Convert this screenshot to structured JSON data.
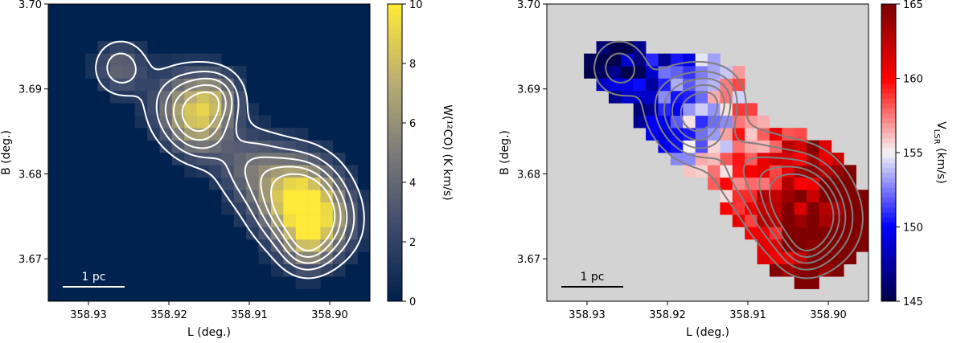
{
  "chart_data": [
    {
      "type": "heatmap",
      "title": "",
      "xlabel": "L (deg.)",
      "ylabel": "B (deg.)",
      "xlim": [
        358.935,
        358.895
      ],
      "ylim": [
        3.665,
        3.7
      ],
      "xticks": [
        358.93,
        358.92,
        358.91,
        358.9
      ],
      "xtick_labels": [
        "358.93",
        "358.92",
        "358.91",
        "358.90"
      ],
      "yticks": [
        3.67,
        3.68,
        3.69,
        3.7
      ],
      "ytick_labels": [
        "3.67",
        "3.68",
        "3.69",
        "3.70"
      ],
      "background_color": "#00224e",
      "colormap": "cividis",
      "colorbar": {
        "label": "W(¹²CO) (K km/s)",
        "min": 0,
        "max": 10,
        "ticks": [
          0,
          2,
          4,
          6,
          8,
          10
        ],
        "tick_labels": [
          "0",
          "2",
          "4",
          "6",
          "8",
          "10"
        ]
      },
      "contour_color": "#ffffff",
      "scale_bar_label": "1 pc",
      "blobs": [
        {
          "l": 358.926,
          "b": 3.6925,
          "amp": 4.0,
          "s": 0.0022
        },
        {
          "l": 358.918,
          "b": 3.688,
          "amp": 5.5,
          "s": 0.003
        },
        {
          "l": 358.914,
          "b": 3.689,
          "amp": 4.5,
          "s": 0.0022
        },
        {
          "l": 358.916,
          "b": 3.685,
          "amp": 4.0,
          "s": 0.0025
        },
        {
          "l": 358.91,
          "b": 3.681,
          "amp": 3.5,
          "s": 0.003
        },
        {
          "l": 358.904,
          "b": 3.677,
          "amp": 9.5,
          "s": 0.0035
        },
        {
          "l": 358.901,
          "b": 3.674,
          "amp": 5.0,
          "s": 0.003
        },
        {
          "l": 358.903,
          "b": 3.671,
          "amp": 3.0,
          "s": 0.002
        }
      ],
      "contour_levels": [
        1.5,
        3,
        4.5,
        6,
        7.5
      ]
    },
    {
      "type": "heatmap",
      "title": "",
      "xlabel": "L (deg.)",
      "ylabel": "B (deg.)",
      "xlim": [
        358.935,
        358.895
      ],
      "ylim": [
        3.665,
        3.7
      ],
      "xticks": [
        358.93,
        358.92,
        358.91,
        358.9
      ],
      "xtick_labels": [
        "358.93",
        "358.92",
        "358.91",
        "358.90"
      ],
      "yticks": [
        3.67,
        3.68,
        3.69,
        3.7
      ],
      "ytick_labels": [
        "3.67",
        "3.68",
        "3.69",
        "3.70"
      ],
      "background_color": "#d3d3d3",
      "colormap": "seismic",
      "colorbar": {
        "label": "V_LSR (km/s)",
        "label_main": "V",
        "label_sub": "LSR",
        "label_unit": " (km/s)",
        "min": 145,
        "max": 165,
        "ticks": [
          145,
          150,
          155,
          160,
          165
        ],
        "tick_labels": [
          "145",
          "150",
          "155",
          "160",
          "165"
        ]
      },
      "contour_color": "#808080",
      "scale_bar_label": "1 pc",
      "velocity_gradient": {
        "l0": 358.915,
        "v0": 155,
        "slope_per_deg": 600,
        "b_coeff": -200
      }
    }
  ]
}
